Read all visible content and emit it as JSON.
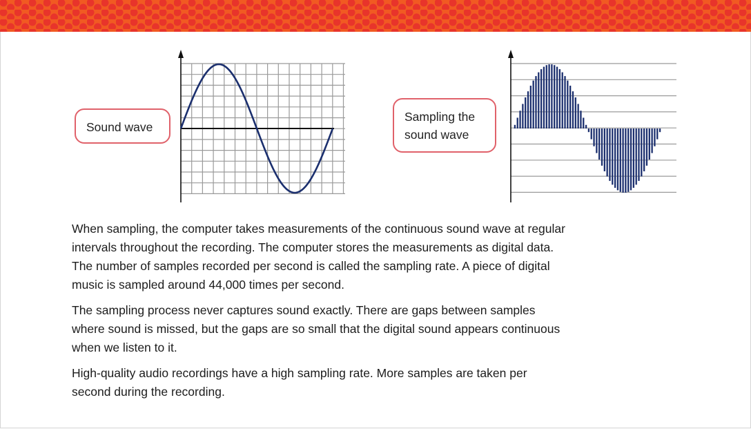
{
  "callouts": {
    "sound_wave": "Sound wave",
    "sampling_line1": "Sampling the",
    "sampling_line2": "sound wave"
  },
  "paragraphs": [
    "When sampling, the computer takes measurements of the continuous sound wave at regular intervals throughout the recording. The computer stores the measurements as digital data. The number of samples recorded per second is called the sampling rate. A piece of digital music is sampled around 44,000 times per second.",
    "The sampling process never captures sound exactly. There are gaps between samples where sound is missed, but the gaps are so small that the digital sound appears continuous when we listen to it.",
    "High-quality audio recordings have a high sampling rate. More samples are taken per second during the recording."
  ],
  "colors": {
    "banner_orange": "#f15a22",
    "banner_red": "#e8342b",
    "callout_border": "#e0616a",
    "wave_navy": "#1b2f6e",
    "grid_gray": "#9a9a9a"
  }
}
